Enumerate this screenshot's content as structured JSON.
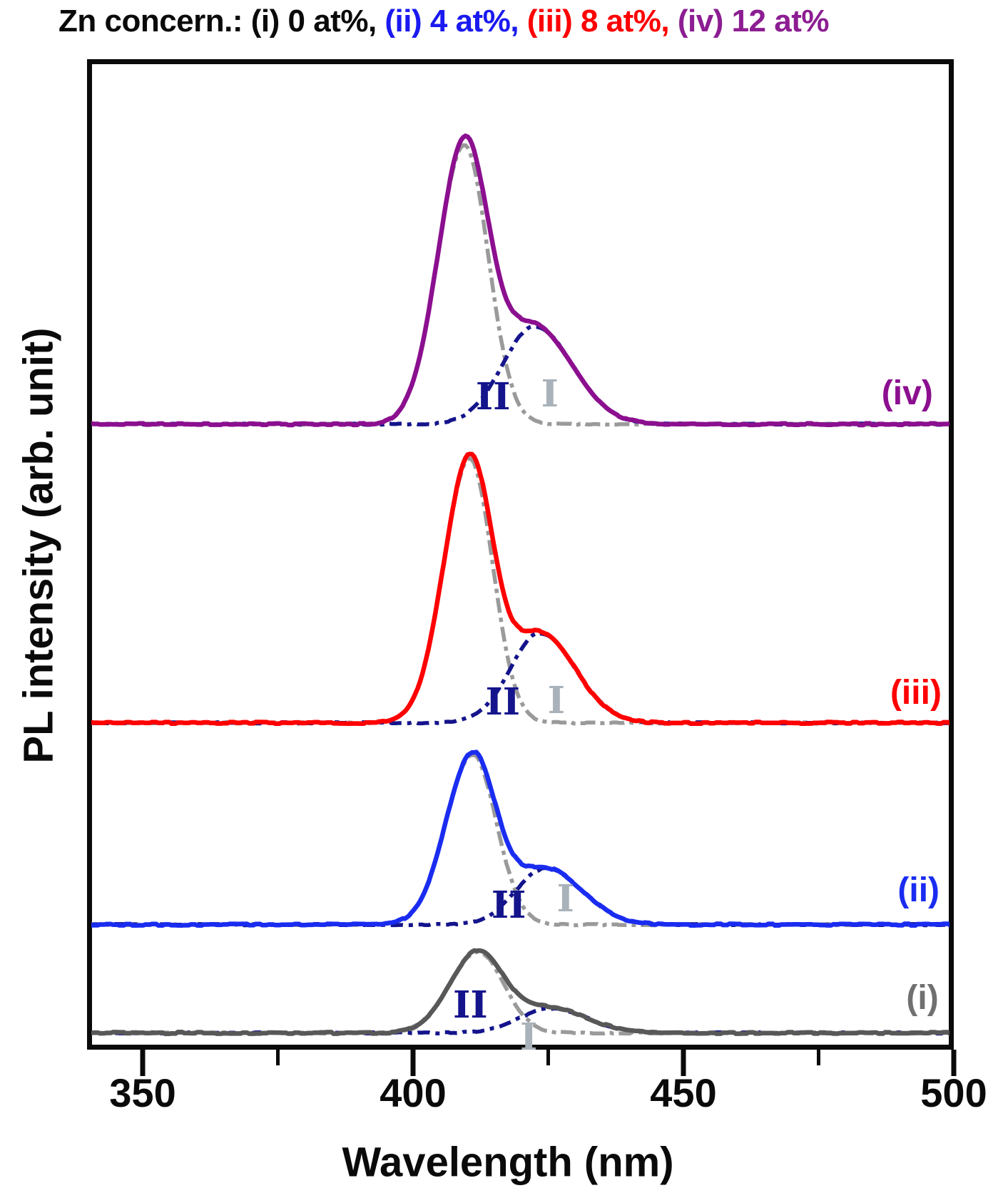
{
  "title": {
    "segments": [
      {
        "text": "Zn concern.: (i) 0 at%,",
        "color": "#0a0a0a"
      },
      {
        "text": " (ii) 4 at%,",
        "color": "#1a1af0"
      },
      {
        "text": " (iii) 8 at%,",
        "color": "#fe0000"
      },
      {
        "text": " (iv) 12 at%",
        "color": "#8c1d92"
      }
    ]
  },
  "axes": {
    "xlabel": "Wavelength (nm)",
    "ylabel": "PL intensity (arb. unit)",
    "x_major_tick_labels": [
      "350",
      "400",
      "450",
      "500"
    ]
  },
  "chart_data": {
    "type": "line",
    "title": "Zn concern.: (i) 0 at%, (ii) 4 at%, (iii) 8 at%, (iv) 12 at%",
    "xlabel": "Wavelength (nm)",
    "ylabel": "PL intensity (arb. unit)",
    "x_axis": {
      "unit": "nm",
      "min": 339.7,
      "max": 500,
      "major_ticks": [
        350,
        400,
        450,
        500
      ],
      "minor_ticks": [
        375,
        425,
        475
      ]
    },
    "y_axis": {
      "unit": "arb. unit",
      "tick_labels": [],
      "note": "four PL spectra vertically offset; intensity given as fraction of plot height"
    },
    "deconvolution": {
      "component_I": {
        "label": "I",
        "style": "dash-dot",
        "color": "#9a9a9a",
        "label_color": "#a9b2ba"
      },
      "component_II": {
        "label": "II",
        "style": "dash-dot",
        "color": "#14148c",
        "label_color": "#14148c"
      }
    },
    "series": [
      {
        "key": "i",
        "label": "(i)",
        "zn_at_percent": 0,
        "color": "#585858",
        "label_color": "#707070",
        "baseline_frac": 0.0155,
        "amplitude_frac": 0.082,
        "peak_nm": 412,
        "components": [
          {
            "name": "I",
            "center_nm": 412.0,
            "sigma_left_nm": 5.2,
            "sigma_right_nm": 4.8,
            "rel_amplitude": 1.0
          },
          {
            "name": "II",
            "center_nm": 425.5,
            "sigma_left_nm": 5.8,
            "sigma_right_nm": 6.8,
            "rel_amplitude": 0.3
          }
        ],
        "annotation_II": {
          "nm": 410.6,
          "frac": 0.043
        },
        "annotation_I": {
          "nm": 421.4,
          "frac": 0.011
        },
        "series_label_pos": {
          "nm": 494.2,
          "frac": 0.0505
        }
      },
      {
        "key": "ii",
        "label": "(ii)",
        "zn_at_percent": 4,
        "color": "#1a2cf0",
        "label_color": "#1a2cf0",
        "baseline_frac": 0.125,
        "amplitude_frac": 0.172,
        "peak_nm": 411,
        "components": [
          {
            "name": "I",
            "center_nm": 411.0,
            "sigma_left_nm": 4.9,
            "sigma_right_nm": 4.4,
            "rel_amplitude": 1.0
          },
          {
            "name": "II",
            "center_nm": 424.5,
            "sigma_left_nm": 5.5,
            "sigma_right_nm": 6.8,
            "rel_amplitude": 0.33
          }
        ],
        "annotation_II": {
          "nm": 417.7,
          "frac": 0.144
        },
        "annotation_I": {
          "nm": 428.2,
          "frac": 0.151
        },
        "series_label_pos": {
          "nm": 493.5,
          "frac": 0.159
        }
      },
      {
        "key": "iii",
        "label": "(iii)",
        "zn_at_percent": 8,
        "color": "#fe0000",
        "label_color": "#fe0000",
        "baseline_frac": 0.329,
        "amplitude_frac": 0.267,
        "peak_nm": 410.5,
        "components": [
          {
            "name": "I",
            "center_nm": 410.5,
            "sigma_left_nm": 4.8,
            "sigma_right_nm": 4.2,
            "rel_amplitude": 1.0
          },
          {
            "name": "II",
            "center_nm": 423.5,
            "sigma_left_nm": 5.5,
            "sigma_right_nm": 6.5,
            "rel_amplitude": 0.34
          }
        ],
        "annotation_II": {
          "nm": 416.6,
          "frac": 0.35
        },
        "annotation_I": {
          "nm": 426.5,
          "frac": 0.351
        },
        "series_label_pos": {
          "nm": 493.0,
          "frac": 0.359
        }
      },
      {
        "key": "iv",
        "label": "(iv)",
        "zn_at_percent": 12,
        "color": "#8b0f8f",
        "label_color": "#8b0f8f",
        "baseline_frac": 0.631,
        "amplitude_frac": 0.282,
        "peak_nm": 409.5,
        "components": [
          {
            "name": "I",
            "center_nm": 409.5,
            "sigma_left_nm": 4.9,
            "sigma_right_nm": 4.4,
            "rel_amplitude": 1.0
          },
          {
            "name": "II",
            "center_nm": 422.5,
            "sigma_left_nm": 6.0,
            "sigma_right_nm": 7.0,
            "rel_amplitude": 0.35
          }
        ],
        "annotation_II": {
          "nm": 414.8,
          "frac": 0.658
        },
        "annotation_I": {
          "nm": 425.3,
          "frac": 0.661
        },
        "series_label_pos": {
          "nm": 491.4,
          "frac": 0.662
        }
      }
    ],
    "style": {
      "axis_color": "#0a0a0a",
      "component_I_color": "#9a9a9a",
      "component_II_color": "#14148c",
      "legend_position": "inline-right"
    }
  }
}
